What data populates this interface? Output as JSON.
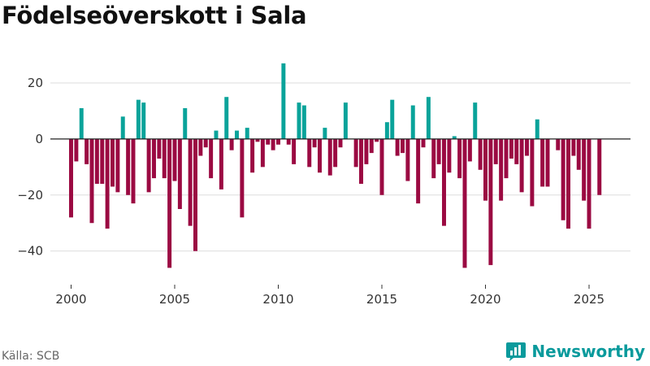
{
  "chart_data": {
    "type": "bar",
    "title": "Födelseöverskott i Sala",
    "xlabel": "",
    "ylabel": "",
    "xlim": [
      1999,
      2027
    ],
    "ylim": [
      -52,
      38
    ],
    "x_ticks": [
      2000,
      2005,
      2010,
      2015,
      2020,
      2025
    ],
    "y_ticks": [
      20,
      0,
      -20,
      -40
    ],
    "y_tick_labels": [
      "20",
      "0",
      "−20",
      "−40"
    ],
    "grid": "horizontal",
    "colors": {
      "positive": "#0aa39a",
      "negative": "#9b0a42",
      "zero_line": "#222222",
      "grid": "#dddddd"
    },
    "series": [
      {
        "name": "Födelseöverskott",
        "x": [
          2000.0,
          2000.25,
          2000.5,
          2000.75,
          2001.0,
          2001.25,
          2001.5,
          2001.75,
          2002.0,
          2002.25,
          2002.5,
          2002.75,
          2003.0,
          2003.25,
          2003.5,
          2003.75,
          2004.0,
          2004.25,
          2004.5,
          2004.75,
          2005.0,
          2005.25,
          2005.5,
          2005.75,
          2006.0,
          2006.25,
          2006.5,
          2006.75,
          2007.0,
          2007.25,
          2007.5,
          2007.75,
          2008.0,
          2008.25,
          2008.5,
          2008.75,
          2009.0,
          2009.25,
          2009.5,
          2009.75,
          2010.0,
          2010.25,
          2010.5,
          2010.75,
          2011.0,
          2011.25,
          2011.5,
          2011.75,
          2012.0,
          2012.25,
          2012.5,
          2012.75,
          2013.0,
          2013.25,
          2013.5,
          2013.75,
          2014.0,
          2014.25,
          2014.5,
          2014.75,
          2015.0,
          2015.25,
          2015.5,
          2015.75,
          2016.0,
          2016.25,
          2016.5,
          2016.75,
          2017.0,
          2017.25,
          2017.5,
          2017.75,
          2018.0,
          2018.25,
          2018.5,
          2018.75,
          2019.0,
          2019.25,
          2019.5,
          2019.75,
          2020.0,
          2020.25,
          2020.5,
          2020.75,
          2021.0,
          2021.25,
          2021.5,
          2021.75,
          2022.0,
          2022.25,
          2022.5,
          2022.75,
          2023.0,
          2023.25,
          2023.5,
          2023.75,
          2024.0,
          2024.25,
          2024.5,
          2024.75,
          2025.0,
          2025.25,
          2025.5,
          2025.75
        ],
        "values": [
          -28,
          -8,
          11,
          -9,
          -30,
          -16,
          -16,
          -32,
          -17,
          -19,
          8,
          -20,
          -23,
          14,
          13,
          -19,
          -14,
          -7,
          -14,
          -46,
          -15,
          -25,
          11,
          -31,
          -40,
          -6,
          -3,
          -14,
          3,
          -18,
          15,
          -4,
          3,
          -28,
          4,
          -12,
          -1,
          -10,
          -2,
          -4,
          -2,
          27,
          -2,
          -9,
          13,
          12,
          -10,
          -3,
          -12,
          4,
          -13,
          -10,
          -3,
          13,
          0,
          -10,
          -16,
          -9,
          -5,
          -1,
          -20,
          6,
          14,
          -6,
          -5,
          -15,
          12,
          -23,
          -3,
          15,
          -14,
          -9,
          -31,
          -12,
          1,
          -14,
          -46,
          -8,
          13,
          -11,
          -22,
          -45,
          -9,
          -22,
          -14,
          -7,
          -9,
          -19,
          -6,
          -24,
          7,
          -17,
          -17,
          0,
          -4,
          -29,
          -32,
          -6,
          -11,
          -22,
          -32,
          0,
          -20,
          0
        ]
      }
    ]
  },
  "footer": {
    "source": "Källa: SCB"
  },
  "brand": {
    "name": "Newsworthy"
  }
}
